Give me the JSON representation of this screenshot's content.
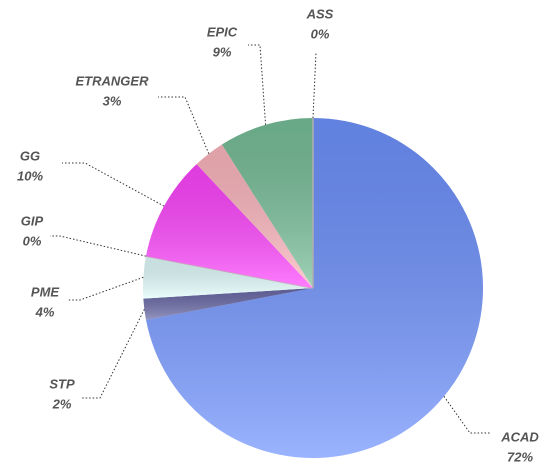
{
  "chart_data": {
    "type": "pie",
    "categories": [
      "ACAD",
      "STP",
      "PME",
      "GIP",
      "GG",
      "ETRANGER",
      "EPIC",
      "ASS"
    ],
    "values": [
      72,
      2,
      4,
      0,
      10,
      3,
      9,
      0
    ],
    "value_labels": [
      "72%",
      "2%",
      "4%",
      "0%",
      "10%",
      "3%",
      "9%",
      "0%"
    ],
    "colors": [
      "#6f93ff",
      "#6a6aa8",
      "#e4ffff",
      "#c8a8b8",
      "#ff44ff",
      "#ffb8c0",
      "#78c09a",
      "#b0b0b0"
    ]
  }
}
